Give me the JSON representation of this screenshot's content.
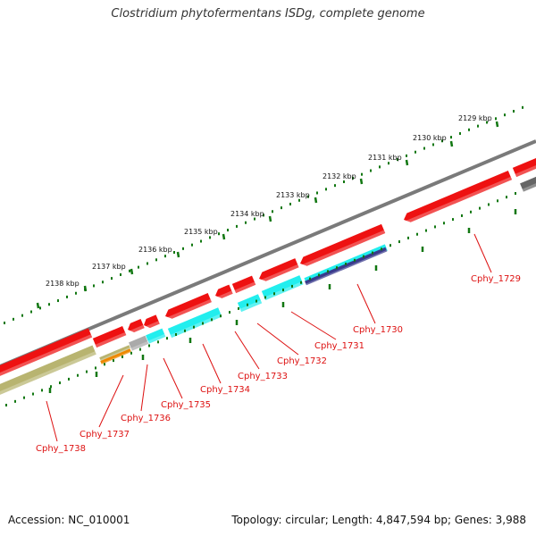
{
  "header": {
    "title": "Clostridium phytofermentans ISDg, complete genome"
  },
  "footer": {
    "accession": "Accession: NC_010001",
    "summary": "Topology: circular; Length: 4,847,594 bp; Genes: 3,988"
  },
  "scale": {
    "tick_labels": [
      "2129 kbp",
      "2130 kbp",
      "2131 kbp",
      "2132 kbp",
      "2133 kbp",
      "2134 kbp",
      "2135 kbp",
      "2136 kbp",
      "2137 kbp",
      "2138 kbp"
    ]
  },
  "genes": {
    "labels": [
      "Cphy_1729",
      "Cphy_1730",
      "Cphy_1731",
      "Cphy_1732",
      "Cphy_1733",
      "Cphy_1734",
      "Cphy_1735",
      "Cphy_1736",
      "Cphy_1737",
      "Cphy_1738"
    ]
  },
  "colors": {
    "backbone": "#7a7a7a",
    "red_cds": "#ee1111",
    "cyan_feature": "#22eeee",
    "navy_feature": "#3a3a8c",
    "olive_feature": "#b8b470",
    "orange_feature": "#ee8800",
    "grey_feature": "#aaaaaa",
    "teal_feature": "#11aaaa",
    "tick": "#117711",
    "label": "#dd1111"
  }
}
